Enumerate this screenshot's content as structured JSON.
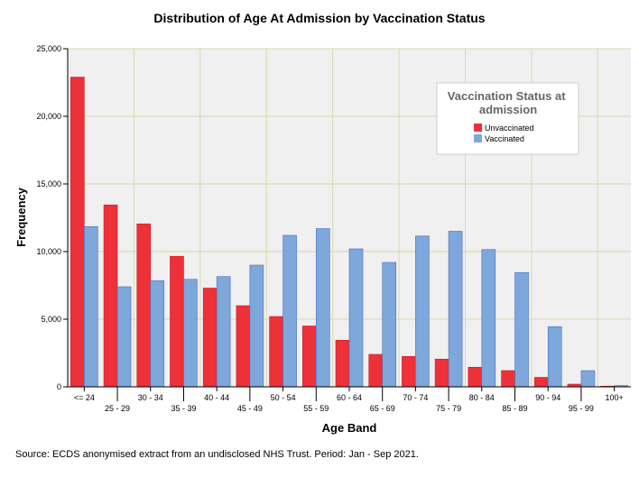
{
  "chart_data": {
    "type": "bar",
    "title": "Distribution of Age At Admission by Vaccination Status",
    "xlabel": "Age Band",
    "ylabel": "Frequency",
    "ylim": [
      0,
      25000
    ],
    "yticks": [
      0,
      5000,
      10000,
      15000,
      20000,
      25000
    ],
    "ytick_labels": [
      "0",
      "5,000",
      "10,000",
      "15,000",
      "20,000",
      "25,000"
    ],
    "grid": true,
    "legend": {
      "title": "Vaccination Status at admission",
      "position": "top-right"
    },
    "categories": [
      "<= 24",
      "25 - 29",
      "30 - 34",
      "35 - 39",
      "40 - 44",
      "45 - 49",
      "50 - 54",
      "55 - 59",
      "60 - 64",
      "65 - 69",
      "70 - 74",
      "75 - 79",
      "80 - 84",
      "85 - 89",
      "90 - 94",
      "95 - 99",
      "100+"
    ],
    "series": [
      {
        "name": "Unvaccinated",
        "color": "#ee3039",
        "values": [
          22900,
          13450,
          12050,
          9650,
          7300,
          6000,
          5200,
          4500,
          3450,
          2400,
          2250,
          2050,
          1450,
          1200,
          700,
          200,
          50
        ]
      },
      {
        "name": "Vaccinated",
        "color": "#7ea7db",
        "values": [
          11850,
          7400,
          7850,
          7950,
          8150,
          9000,
          11200,
          11700,
          10200,
          9200,
          11150,
          11500,
          10150,
          8450,
          4450,
          1200,
          100
        ]
      }
    ]
  },
  "footer": {
    "source": "Source: ECDS anonymised extract from an undisclosed NHS Trust. Period: Jan - Sep 2021."
  }
}
